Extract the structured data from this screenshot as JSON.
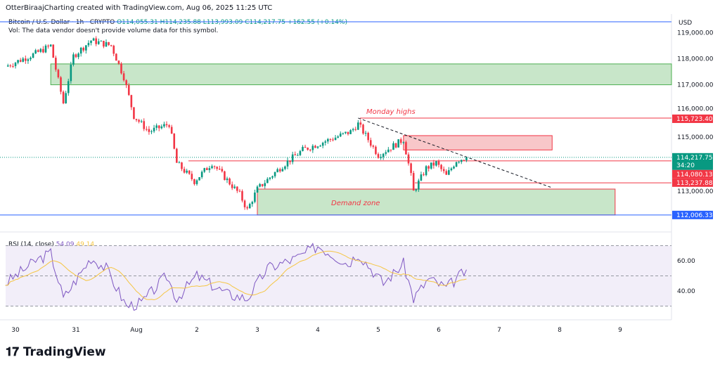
{
  "header": {
    "credit": "OtterBiraajCharting created with TradingView.com, Aug 06, 2025 11:25 UTC",
    "symbol": "Bitcoin / U.S. Dollar · 1h · CRYPTO",
    "open": "O114,055.31",
    "high": "H114,235.88",
    "low": "L113,993.09",
    "close": "C114,217.75",
    "change": "+162.55 (+0.14%)",
    "volume_note": "Vol: The data vendor doesn't provide volume data for this symbol.",
    "currency": "USD"
  },
  "rsi": {
    "label": "RSI (14, close)",
    "value": "54.09",
    "ma": "49.14",
    "levels": [
      70,
      50,
      30
    ],
    "ticks": [
      "60.00",
      "40.00"
    ]
  },
  "colors": {
    "up": "#089981",
    "down": "#f23645",
    "zone_green": "#c8e6c9",
    "zone_red": "#f8c7c9",
    "line_blue": "#2962ff",
    "rsi": "#7e57c2",
    "rsi_ma": "#f5c542"
  },
  "annotations": {
    "monday_highs": "Monday highs",
    "demand_zone": "Demand zone"
  },
  "price_labels": {
    "monday_high": "115,723.40",
    "current": "114,217.75",
    "countdown": "34:20",
    "level1": "114,080.13",
    "level2": "113,237.88",
    "support": "112,006.33"
  },
  "brand": "TradingView",
  "chart_data": {
    "type": "candlestick",
    "interval": "1h",
    "y_ticks": [
      "119,000.00",
      "118,000.00",
      "117,000.00",
      "116,000.00",
      "115,000.00",
      "113,000.00"
    ],
    "x_ticks": [
      "30",
      "31",
      "Aug",
      "2",
      "3",
      "4",
      "5",
      "6",
      "7",
      "8",
      "9"
    ],
    "close_path": [
      [
        "07-29 20:00",
        117700
      ],
      [
        "07-30 08:00",
        118200
      ],
      [
        "07-30 14:00",
        118500
      ],
      [
        "07-30 16:00",
        117600
      ],
      [
        "07-30 19:00",
        116300
      ],
      [
        "07-30 23:00",
        118100
      ],
      [
        "07-31 06:00",
        118700
      ],
      [
        "07-31 14:00",
        118500
      ],
      [
        "07-31 19:00",
        117300
      ],
      [
        "07-31 23:00",
        115800
      ],
      [
        "08-01 05:00",
        115200
      ],
      [
        "08-01 13:00",
        115500
      ],
      [
        "08-01 16:00",
        114000
      ],
      [
        "08-01 23:00",
        113300
      ],
      [
        "08-02 06:00",
        114000
      ],
      [
        "08-02 17:00",
        112800
      ],
      [
        "08-02 20:00",
        112200
      ],
      [
        "08-03 00:00",
        113000
      ],
      [
        "08-03 10:00",
        113900
      ],
      [
        "08-03 18:00",
        114500
      ],
      [
        "08-04 02:00",
        114800
      ],
      [
        "08-04 13:00",
        115200
      ],
      [
        "08-04 16:00",
        115500
      ],
      [
        "08-05 00:00",
        114300
      ],
      [
        "08-05 10:00",
        114900
      ],
      [
        "08-05 13:00",
        113500
      ],
      [
        "08-05 14:00",
        112900
      ],
      [
        "08-05 19:00",
        113800
      ],
      [
        "08-05 23:00",
        114000
      ],
      [
        "08-06 03:00",
        113500
      ],
      [
        "08-06 07:00",
        114100
      ],
      [
        "08-06 11:00",
        114217.75
      ]
    ],
    "rsi_path": [
      [
        "07-29 20:00",
        45
      ],
      [
        "07-30 08:00",
        60
      ],
      [
        "07-30 14:00",
        65
      ],
      [
        "07-30 19:00",
        35
      ],
      [
        "07-31 06:00",
        62
      ],
      [
        "07-31 12:00",
        55
      ],
      [
        "07-31 20:00",
        30
      ],
      [
        "08-01 02:00",
        32
      ],
      [
        "08-01 12:00",
        50
      ],
      [
        "08-01 16:00",
        35
      ],
      [
        "08-02 00:00",
        50
      ],
      [
        "08-02 12:00",
        38
      ],
      [
        "08-02 20:00",
        35
      ],
      [
        "08-03 04:00",
        55
      ],
      [
        "08-03 16:00",
        62
      ],
      [
        "08-04 00:00",
        70
      ],
      [
        "08-04 12:00",
        58
      ],
      [
        "08-04 16:00",
        65
      ],
      [
        "08-05 02:00",
        45
      ],
      [
        "08-05 10:00",
        58
      ],
      [
        "08-05 14:00",
        35
      ],
      [
        "08-05 20:00",
        48
      ],
      [
        "08-06 03:00",
        42
      ],
      [
        "08-06 11:00",
        54.09
      ]
    ],
    "zones": [
      {
        "name": "supply-green",
        "from": 117000,
        "to": 117800,
        "start": "07-30 14:00"
      },
      {
        "name": "resistance-red",
        "from": 114500,
        "to": 115050,
        "start": "08-05 10:00",
        "end": "08-07 21:00"
      },
      {
        "name": "demand",
        "from": 112006.33,
        "to": 113000,
        "start": "08-03 00:00",
        "end": "08-08 22:00"
      }
    ],
    "trendline": [
      [
        "08-04 16:00",
        115723.4
      ],
      [
        "08-07 21:00",
        113050
      ]
    ]
  }
}
